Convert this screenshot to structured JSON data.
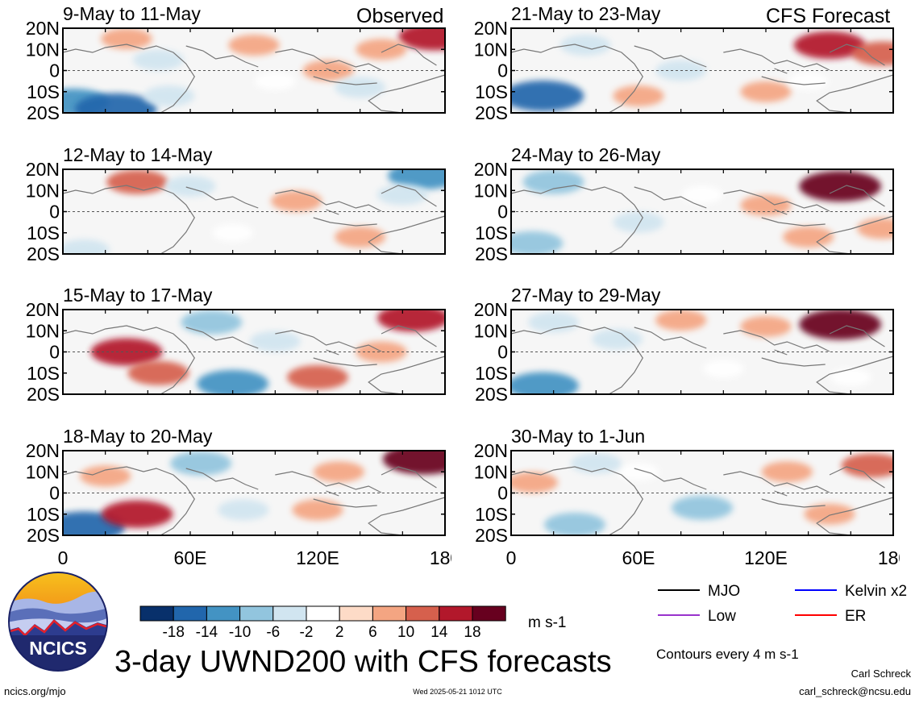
{
  "title": "3-day UWND200 with CFS forecasts",
  "left_column_label": "Observed",
  "right_column_label": "CFS Forecast",
  "panels": [
    {
      "period": "9-May to 11-May"
    },
    {
      "period": "12-May to 14-May"
    },
    {
      "period": "15-May to 17-May"
    },
    {
      "period": "18-May to 20-May"
    },
    {
      "period": "21-May to 23-May"
    },
    {
      "period": "24-May to 26-May"
    },
    {
      "period": "27-May to 29-May"
    },
    {
      "period": "30-May to 1-Jun"
    }
  ],
  "y_ticks": [
    "20N",
    "10N",
    "0",
    "10S",
    "20S"
  ],
  "x_ticks": [
    "0",
    "60E",
    "120E",
    "180"
  ],
  "colorbar": {
    "labels": [
      "-18",
      "-14",
      "-10",
      "-6",
      "-2",
      "2",
      "6",
      "10",
      "14",
      "18"
    ],
    "units": "m s-1",
    "colors": [
      "#08306b",
      "#2166ac",
      "#4393c3",
      "#92c5de",
      "#d1e5f0",
      "#ffffff",
      "#fddbc7",
      "#f4a582",
      "#d6604d",
      "#b2182b",
      "#67001f"
    ]
  },
  "legend": {
    "items": [
      {
        "label": "MJO",
        "color": "#000000"
      },
      {
        "label": "Kelvin x2",
        "color": "#0000ff"
      },
      {
        "label": "Low",
        "color": "#9932cc"
      },
      {
        "label": "ER",
        "color": "#ff0000"
      }
    ],
    "contour_note": "Contours every 4 m s-1"
  },
  "logo_text": "NCICS",
  "footer": {
    "url": "ncics.org/mjo",
    "timestamp": "Wed 2025-05-21 1012 UTC",
    "author": "Carl Schreck",
    "email": "carl_schreck@ncsu.edu"
  },
  "chart_data": {
    "type": "heatmap",
    "variable": "UWND200",
    "units": "m s-1",
    "x_range": [
      0,
      180
    ],
    "y_range": [
      -20,
      20
    ],
    "panels": [
      {
        "period": "9-May to 11-May",
        "source": "Observed",
        "features": [
          {
            "lon": 5,
            "lat": -15,
            "value": -14
          },
          {
            "lon": 25,
            "lat": -18,
            "value": -18
          },
          {
            "lon": 50,
            "lat": -12,
            "value": -6
          },
          {
            "lon": 45,
            "lat": 5,
            "value": -6
          },
          {
            "lon": 30,
            "lat": 15,
            "value": 6
          },
          {
            "lon": 90,
            "lat": 12,
            "value": 6
          },
          {
            "lon": 175,
            "lat": 16,
            "value": 14
          },
          {
            "lon": 150,
            "lat": 10,
            "value": 6
          },
          {
            "lon": 125,
            "lat": 0,
            "value": 6
          },
          {
            "lon": 140,
            "lat": -8,
            "value": -6
          },
          {
            "lon": 100,
            "lat": -5,
            "value": -2
          }
        ]
      },
      {
        "period": "12-May to 14-May",
        "source": "Observed",
        "features": [
          {
            "lon": 35,
            "lat": 14,
            "value": 10
          },
          {
            "lon": 170,
            "lat": 17,
            "value": -14
          },
          {
            "lon": 10,
            "lat": -18,
            "value": -6
          },
          {
            "lon": 60,
            "lat": 12,
            "value": -6
          },
          {
            "lon": 110,
            "lat": 5,
            "value": 6
          },
          {
            "lon": 140,
            "lat": -12,
            "value": 6
          },
          {
            "lon": 160,
            "lat": 8,
            "value": -6
          },
          {
            "lon": 80,
            "lat": -10,
            "value": -2
          }
        ]
      },
      {
        "period": "15-May to 17-May",
        "source": "Observed",
        "features": [
          {
            "lon": 30,
            "lat": 0,
            "value": 14
          },
          {
            "lon": 45,
            "lat": -10,
            "value": 10
          },
          {
            "lon": 165,
            "lat": 16,
            "value": 14
          },
          {
            "lon": 70,
            "lat": 14,
            "value": -10
          },
          {
            "lon": 80,
            "lat": -15,
            "value": -14
          },
          {
            "lon": 120,
            "lat": -12,
            "value": 10
          },
          {
            "lon": 100,
            "lat": 5,
            "value": -6
          },
          {
            "lon": 150,
            "lat": 0,
            "value": 6
          }
        ]
      },
      {
        "period": "18-May to 20-May",
        "source": "Observed",
        "features": [
          {
            "lon": 10,
            "lat": -16,
            "value": -18
          },
          {
            "lon": 35,
            "lat": -10,
            "value": 14
          },
          {
            "lon": 170,
            "lat": 16,
            "value": 18
          },
          {
            "lon": 65,
            "lat": 14,
            "value": -10
          },
          {
            "lon": 85,
            "lat": -8,
            "value": -6
          },
          {
            "lon": 120,
            "lat": -8,
            "value": 6
          },
          {
            "lon": 130,
            "lat": 10,
            "value": 6
          },
          {
            "lon": 20,
            "lat": 8,
            "value": 6
          }
        ]
      },
      {
        "period": "21-May to 23-May",
        "source": "CFS Forecast",
        "features": [
          {
            "lon": 15,
            "lat": -12,
            "value": -18
          },
          {
            "lon": 150,
            "lat": 12,
            "value": 14
          },
          {
            "lon": 175,
            "lat": 8,
            "value": 10
          },
          {
            "lon": 35,
            "lat": 12,
            "value": -6
          },
          {
            "lon": 80,
            "lat": 0,
            "value": -6
          },
          {
            "lon": 120,
            "lat": -10,
            "value": 6
          },
          {
            "lon": 60,
            "lat": -12,
            "value": 6
          },
          {
            "lon": 140,
            "lat": -5,
            "value": -2
          }
        ]
      },
      {
        "period": "24-May to 26-May",
        "source": "CFS Forecast",
        "features": [
          {
            "lon": 20,
            "lat": 14,
            "value": -10
          },
          {
            "lon": 10,
            "lat": -15,
            "value": -10
          },
          {
            "lon": 155,
            "lat": 12,
            "value": 18
          },
          {
            "lon": 120,
            "lat": 3,
            "value": 6
          },
          {
            "lon": 140,
            "lat": -12,
            "value": 6
          },
          {
            "lon": 90,
            "lat": 8,
            "value": -2
          },
          {
            "lon": 60,
            "lat": -5,
            "value": -6
          },
          {
            "lon": 175,
            "lat": -8,
            "value": 6
          }
        ]
      },
      {
        "period": "27-May to 29-May",
        "source": "CFS Forecast",
        "features": [
          {
            "lon": 15,
            "lat": -16,
            "value": -14
          },
          {
            "lon": 155,
            "lat": 13,
            "value": 18
          },
          {
            "lon": 80,
            "lat": 15,
            "value": 6
          },
          {
            "lon": 50,
            "lat": 6,
            "value": -6
          },
          {
            "lon": 120,
            "lat": 12,
            "value": 6
          },
          {
            "lon": 100,
            "lat": -8,
            "value": -2
          },
          {
            "lon": 160,
            "lat": -12,
            "value": -2
          },
          {
            "lon": 20,
            "lat": 14,
            "value": -6
          }
        ]
      },
      {
        "period": "30-May to 1-Jun",
        "source": "CFS Forecast",
        "features": [
          {
            "lon": 30,
            "lat": -15,
            "value": -10
          },
          {
            "lon": 90,
            "lat": -7,
            "value": -10
          },
          {
            "lon": 170,
            "lat": 13,
            "value": 10
          },
          {
            "lon": 130,
            "lat": 10,
            "value": 6
          },
          {
            "lon": 10,
            "lat": 5,
            "value": 6
          },
          {
            "lon": 60,
            "lat": 10,
            "value": -2
          },
          {
            "lon": 150,
            "lat": -10,
            "value": 6
          },
          {
            "lon": 40,
            "lat": 14,
            "value": -6
          }
        ]
      }
    ]
  }
}
